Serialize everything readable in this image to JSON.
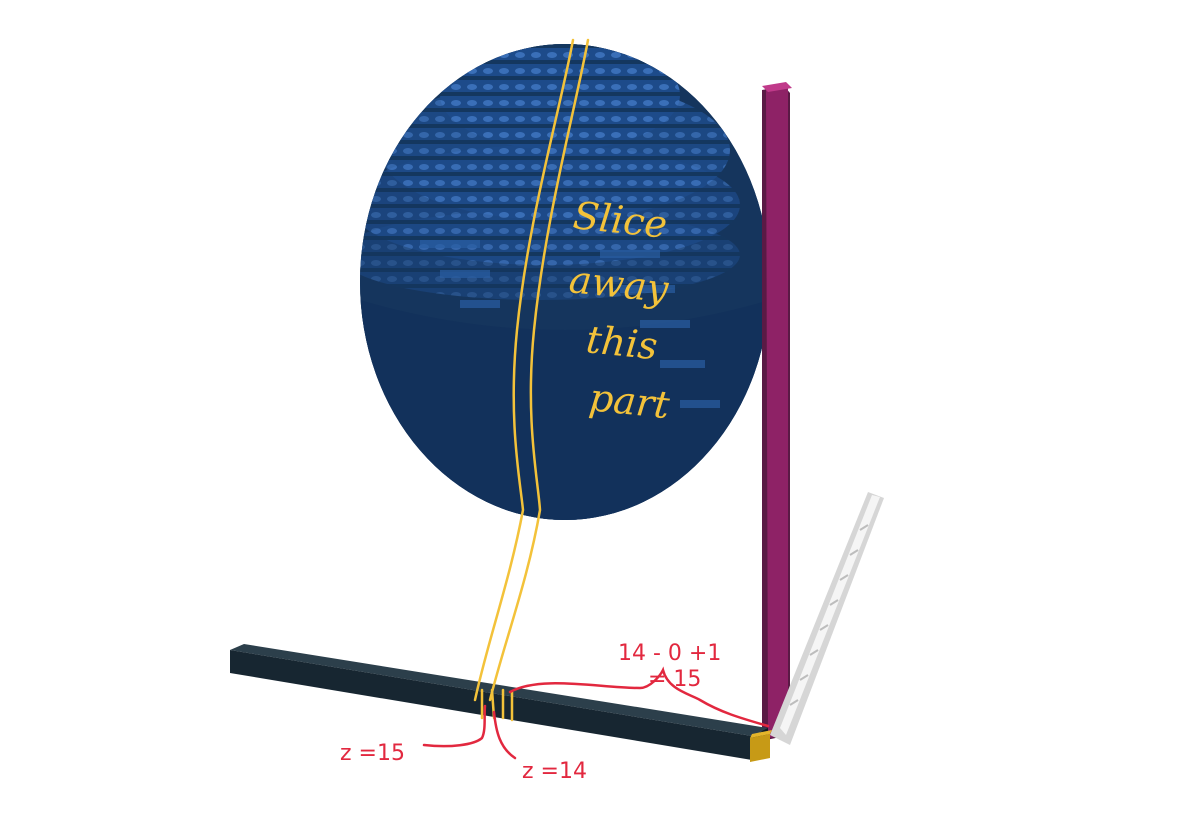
{
  "annotations": {
    "slice_line1": "Slice",
    "slice_line2": "away",
    "slice_line3": "this",
    "slice_line4": "part",
    "z15": "z =15",
    "z14": "z =14",
    "calc_line1": "14 - 0 +1",
    "calc_line2": "= 15"
  },
  "colors": {
    "sphere": "#1f4f91",
    "sphere_shadow": "#12305c",
    "slice": "#f3c23a",
    "red_ink": "#e2283f",
    "pillar": "#8e2266",
    "bar": "#1c2b35",
    "white_bar": "#efefef",
    "corner": "#c79a16"
  }
}
